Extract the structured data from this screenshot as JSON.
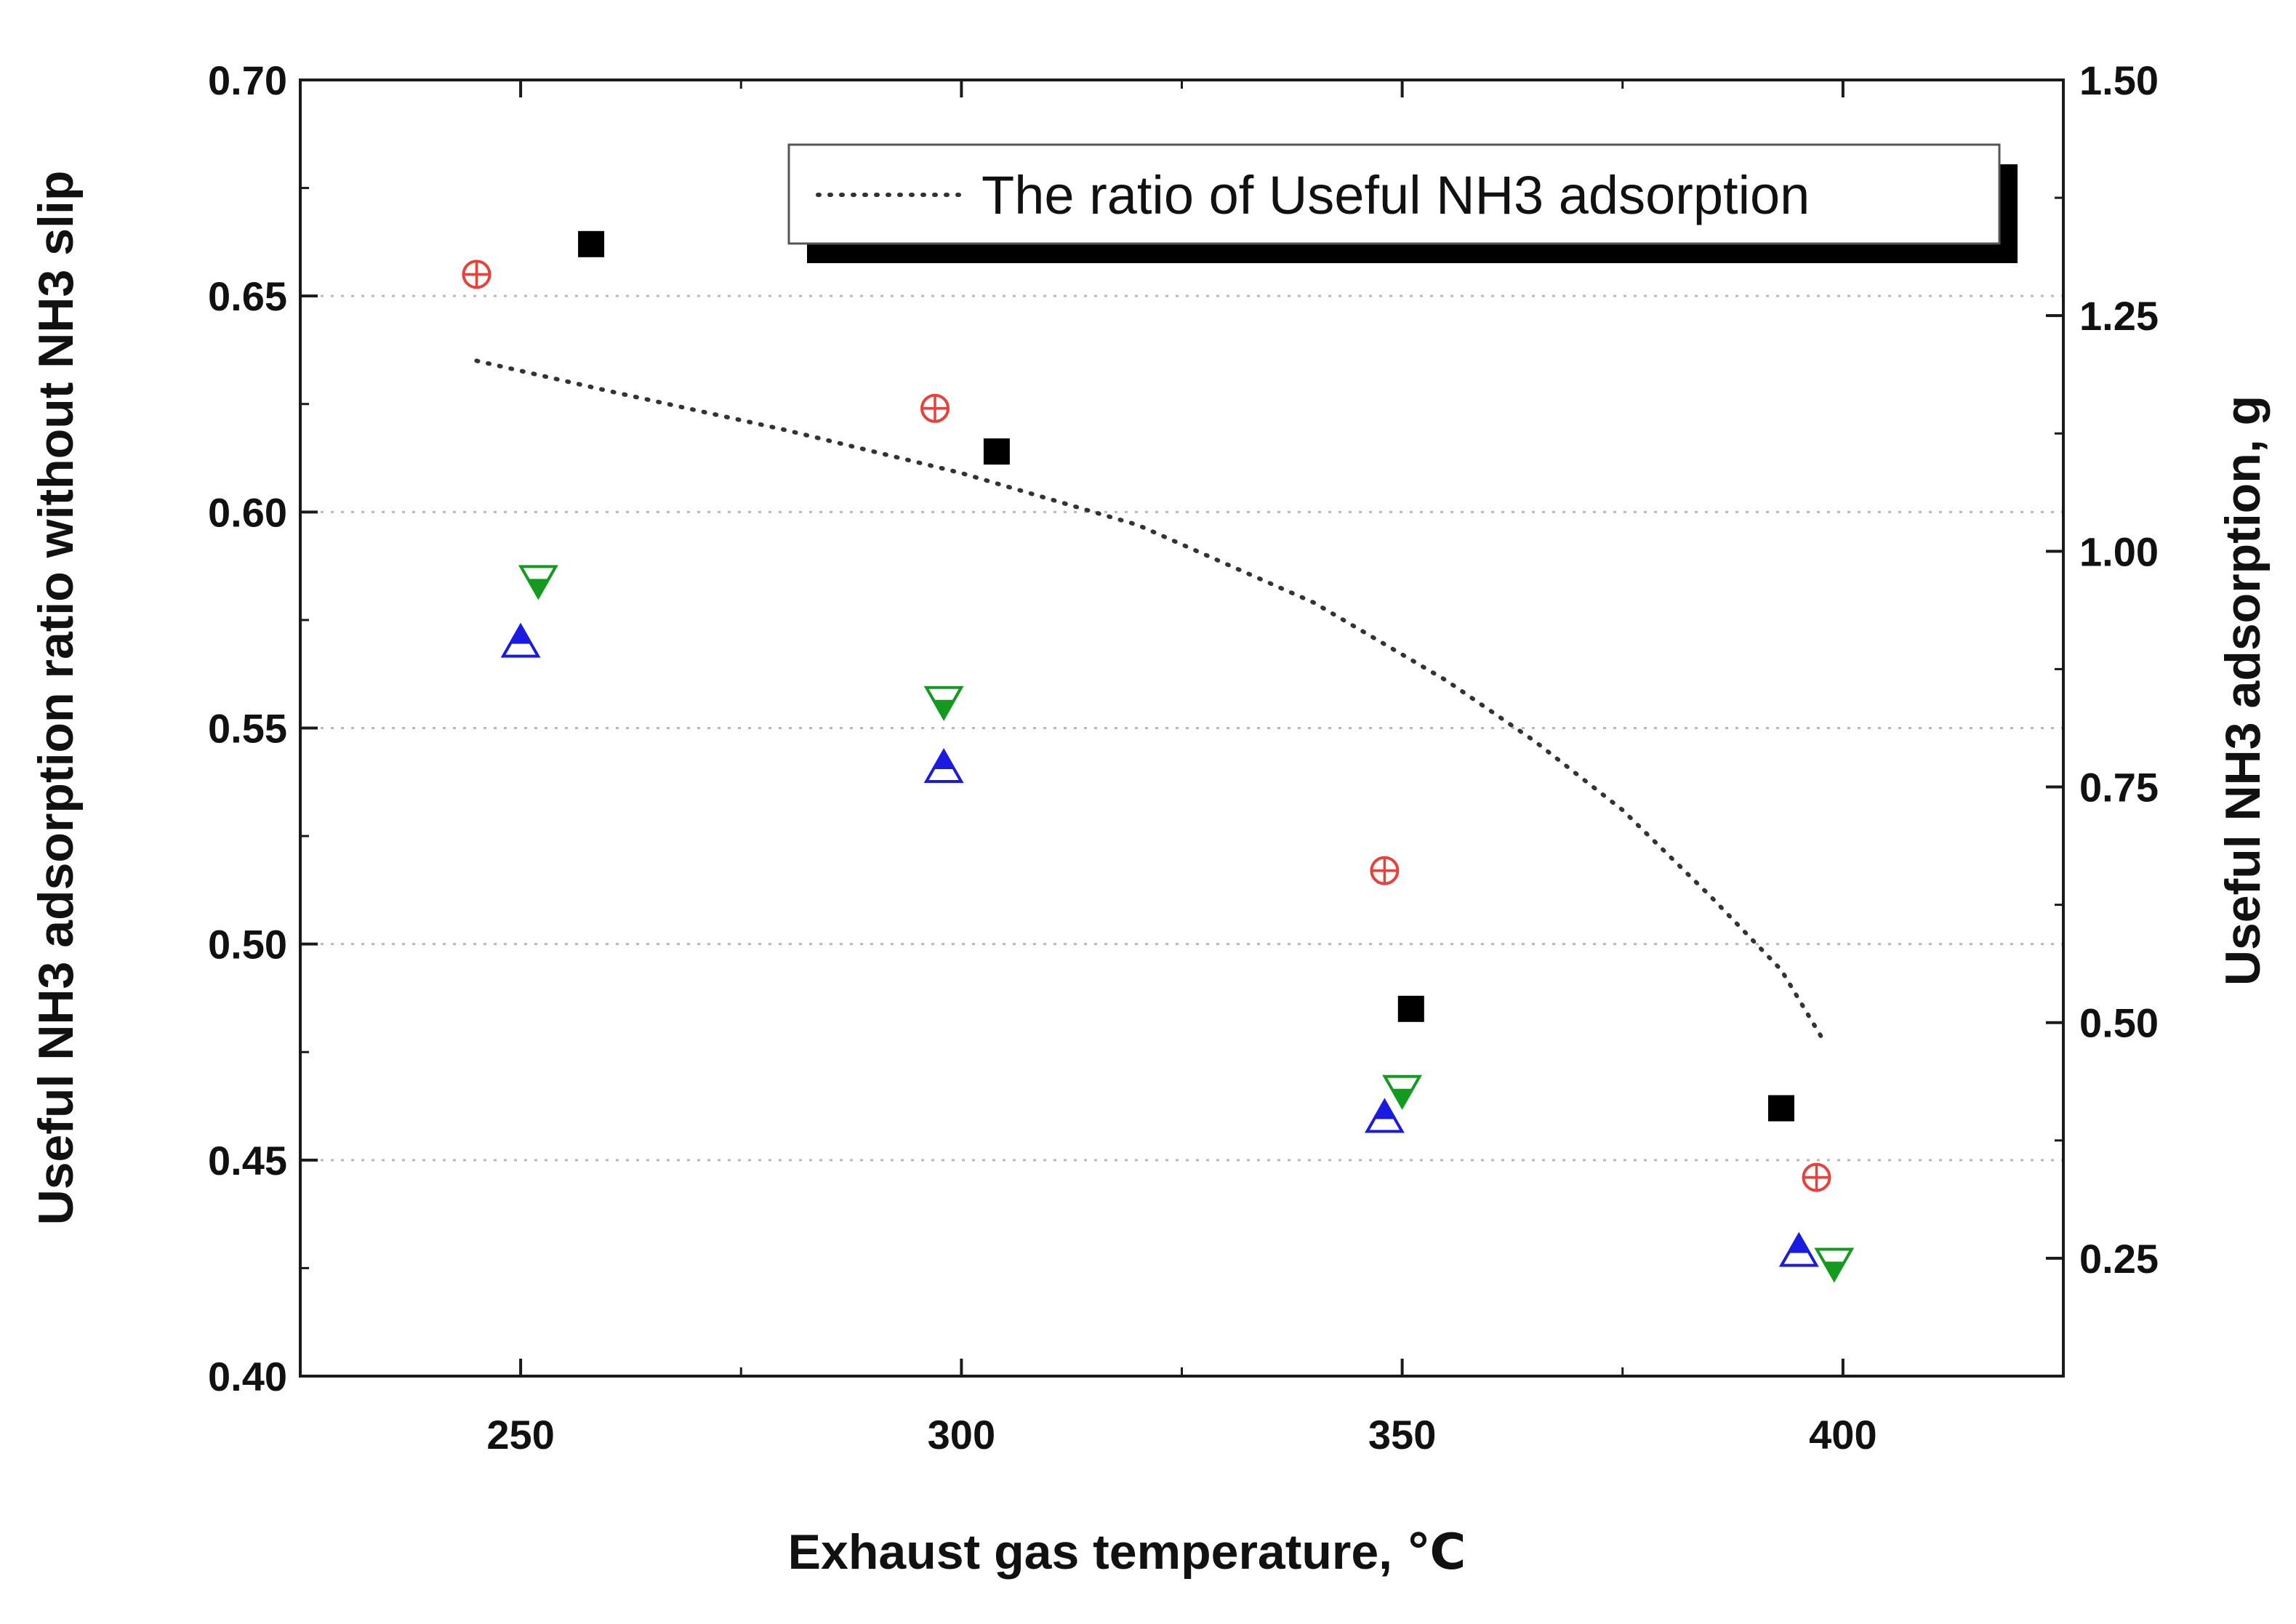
{
  "chart_data": {
    "type": "scatter",
    "xlabel": "Exhaust gas temperature, ℃",
    "ylabel": "Useful NH3 adsorption ratio without NH3 slip",
    "y2label": "Useful NH3 adsorption, g",
    "xlim": [
      225,
      425
    ],
    "ylim": [
      0.4,
      0.7
    ],
    "y2lim": [
      0.125,
      1.5
    ],
    "x_ticks": [
      250,
      300,
      350,
      400
    ],
    "x_tick_labels": [
      "250",
      "300",
      "350",
      "400"
    ],
    "y_ticks": [
      0.4,
      0.45,
      0.5,
      0.55,
      0.6,
      0.65,
      0.7
    ],
    "y_tick_labels": [
      "0.40",
      "0.45",
      "0.50",
      "0.55",
      "0.60",
      "0.65",
      "0.70"
    ],
    "y2_ticks": [
      0.25,
      0.5,
      0.75,
      1.0,
      1.25,
      1.5
    ],
    "y2_tick_labels": [
      "0.25",
      "0.50",
      "0.75",
      "1.00",
      "1.25",
      "1.50"
    ],
    "grid": "horizontal dotted",
    "legend": {
      "position": "top-right",
      "entries": [
        {
          "label": "The ratio of Useful NH3 adsorption",
          "style": "dotted line"
        }
      ]
    },
    "series": [
      {
        "name": "The ratio of Useful NH3 adsorption",
        "style": "dotted-line",
        "color": "#333333",
        "axis": "left",
        "points": [
          [
            245,
            0.635
          ],
          [
            260,
            0.628
          ],
          [
            280,
            0.619
          ],
          [
            300,
            0.609
          ],
          [
            320,
            0.597
          ],
          [
            340,
            0.579
          ],
          [
            355,
            0.561
          ],
          [
            365,
            0.547
          ],
          [
            375,
            0.531
          ],
          [
            385,
            0.511
          ],
          [
            393,
            0.494
          ],
          [
            398,
            0.477
          ]
        ]
      },
      {
        "name": "black filled squares",
        "marker": "square",
        "color": "#000000",
        "axis": "left",
        "points": [
          [
            258,
            0.662
          ],
          [
            304,
            0.614
          ],
          [
            351,
            0.485
          ],
          [
            393,
            0.462
          ]
        ]
      },
      {
        "name": "red circled crosses",
        "marker": "circle-plus",
        "color": "#e8413c",
        "axis": "left",
        "points": [
          [
            245,
            0.655
          ],
          [
            297,
            0.624
          ],
          [
            348,
            0.517
          ],
          [
            397,
            0.446
          ]
        ]
      },
      {
        "name": "green half-filled down triangles",
        "marker": "triangle-down",
        "color": "#139a1f",
        "axis": "left",
        "points": [
          [
            252,
            0.584
          ],
          [
            298,
            0.556
          ],
          [
            350,
            0.466
          ],
          [
            399,
            0.426
          ]
        ]
      },
      {
        "name": "blue half-filled up triangles",
        "marker": "triangle-up",
        "color": "#1a1ae0",
        "axis": "left",
        "points": [
          [
            250,
            0.57
          ],
          [
            298,
            0.541
          ],
          [
            348,
            0.46
          ],
          [
            395,
            0.429
          ]
        ]
      }
    ]
  }
}
